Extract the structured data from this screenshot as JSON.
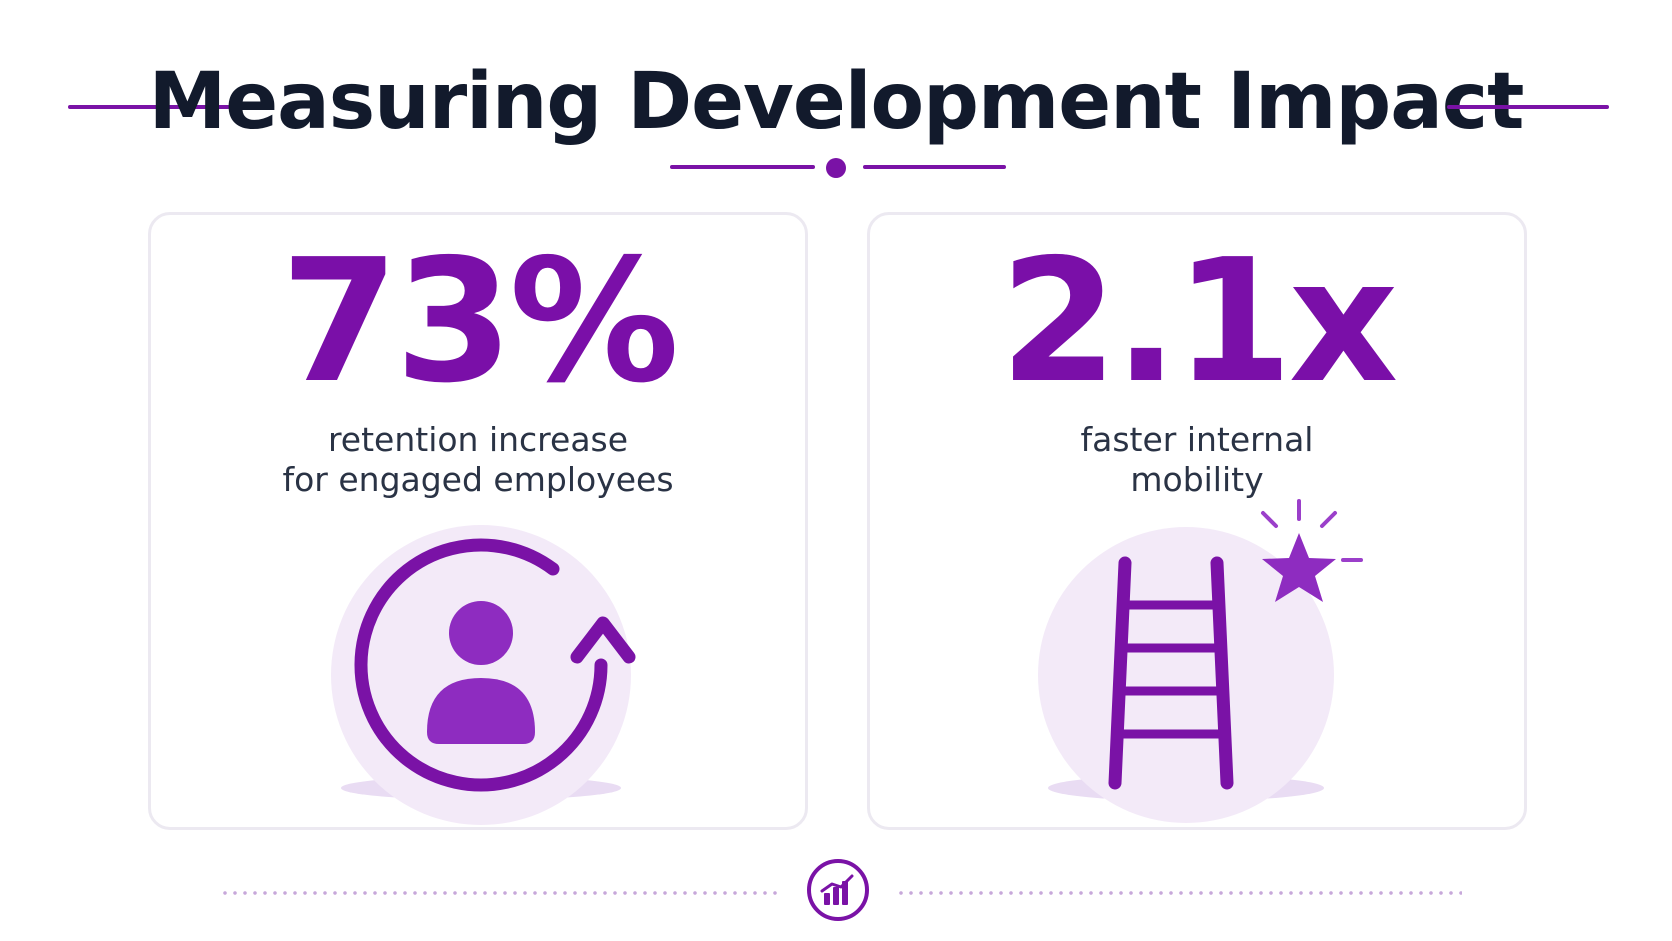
{
  "header": {
    "title": "Measuring Development Impact"
  },
  "cards": [
    {
      "stat": "73%",
      "description_lines": [
        "retention increase",
        "for engaged employees"
      ],
      "icon": "person-retention-cycle-icon"
    },
    {
      "stat": "2.1x",
      "description_lines": [
        "faster internal",
        "mobility"
      ],
      "icon": "ladder-star-icon"
    }
  ],
  "footer": {
    "icon": "bar-chart-icon"
  },
  "colors": {
    "accent": "#7a12a6",
    "title_text": "#121a2c",
    "body_text": "#2a3345",
    "card_border": "#ece9f1",
    "icon_halo": "#f3eaf8"
  }
}
